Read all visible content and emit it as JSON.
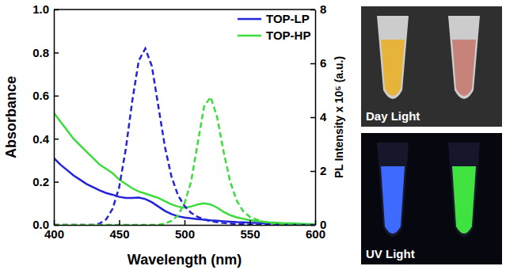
{
  "chart_data": {
    "type": "line",
    "x_label": "Wavelength (nm)",
    "y_label": "Absorbance",
    "y2_label": "PL Intensity x 10⁵ (a.u.)",
    "xlim": [
      400,
      600
    ],
    "xticks": [
      400,
      450,
      500,
      550,
      600
    ],
    "ylim": [
      0,
      1
    ],
    "yticks": [
      {
        "value": 0,
        "label": "0.0"
      },
      {
        "value": 0.2,
        "label": "0.2"
      },
      {
        "value": 0.4,
        "label": "0.4"
      },
      {
        "value": 0.6,
        "label": "0.6"
      },
      {
        "value": 0.8,
        "label": "0.8"
      },
      {
        "value": 1,
        "label": "1.0"
      }
    ],
    "y2lim": [
      0,
      8
    ],
    "y2ticks": [
      0,
      2,
      4,
      6,
      8
    ],
    "legend": "top-right",
    "x": [
      400,
      405,
      410,
      415,
      420,
      425,
      430,
      435,
      440,
      445,
      450,
      455,
      460,
      465,
      470,
      475,
      480,
      485,
      490,
      495,
      500,
      505,
      510,
      515,
      520,
      525,
      530,
      535,
      540,
      545,
      550,
      555,
      560,
      565,
      570,
      575,
      580,
      585,
      590,
      595,
      600
    ],
    "series": [
      {
        "name": "TOP-LP",
        "color": "#2424d8",
        "line_style": "solid",
        "values": [
          0.31,
          0.28,
          0.255,
          0.23,
          0.21,
          0.19,
          0.175,
          0.16,
          0.148,
          0.14,
          0.13,
          0.125,
          0.125,
          0.127,
          0.12,
          0.105,
          0.085,
          0.065,
          0.05,
          0.04,
          0.034,
          0.03,
          0.027,
          0.024,
          0.021,
          0.019,
          0.017,
          0.015,
          0.013,
          0.012,
          0.01,
          0.009,
          0.008,
          0.007,
          0.006,
          0.005,
          0.004,
          0.004,
          0.003,
          0.003,
          0.002
        ]
      },
      {
        "name": "TOP-HP",
        "color": "#3ddc3d",
        "line_style": "solid",
        "values": [
          0.52,
          0.48,
          0.44,
          0.4,
          0.37,
          0.34,
          0.31,
          0.28,
          0.26,
          0.24,
          0.21,
          0.19,
          0.17,
          0.155,
          0.145,
          0.135,
          0.125,
          0.11,
          0.095,
          0.085,
          0.08,
          0.085,
          0.095,
          0.1,
          0.095,
          0.08,
          0.06,
          0.045,
          0.035,
          0.028,
          0.022,
          0.018,
          0.015,
          0.012,
          0.01,
          0.008,
          0.007,
          0.006,
          0.005,
          0.004,
          0.003
        ]
      },
      {
        "name": "TOP-LP",
        "color": "#2424d8",
        "line_style": "dashed",
        "axis": "y2",
        "values": [
          0,
          0,
          0,
          0,
          0,
          0,
          0,
          0.05,
          0.2,
          0.6,
          1.4,
          2.8,
          4.6,
          6.1,
          6.55,
          5.9,
          4.4,
          2.9,
          1.8,
          1.1,
          0.7,
          0.45,
          0.3,
          0.2,
          0.14,
          0.1,
          0.07,
          0.05,
          0.03,
          0.02,
          0.01,
          0,
          0,
          0,
          0,
          0,
          0,
          0,
          0,
          0,
          0
        ]
      },
      {
        "name": "TOP-HP",
        "color": "#3ddc3d",
        "line_style": "dashed",
        "axis": "y2",
        "values": [
          0,
          0,
          0,
          0,
          0,
          0,
          0,
          0,
          0,
          0,
          0,
          0,
          0,
          0,
          0,
          0,
          0,
          0.05,
          0.15,
          0.35,
          0.8,
          1.6,
          3.0,
          4.4,
          4.75,
          4.0,
          2.7,
          1.6,
          0.9,
          0.5,
          0.3,
          0.2,
          0.12,
          0.08,
          0.05,
          0.03,
          0.02,
          0.01,
          0,
          0,
          0
        ]
      }
    ],
    "annotations": [
      "Day Light",
      "UV Light"
    ]
  }
}
